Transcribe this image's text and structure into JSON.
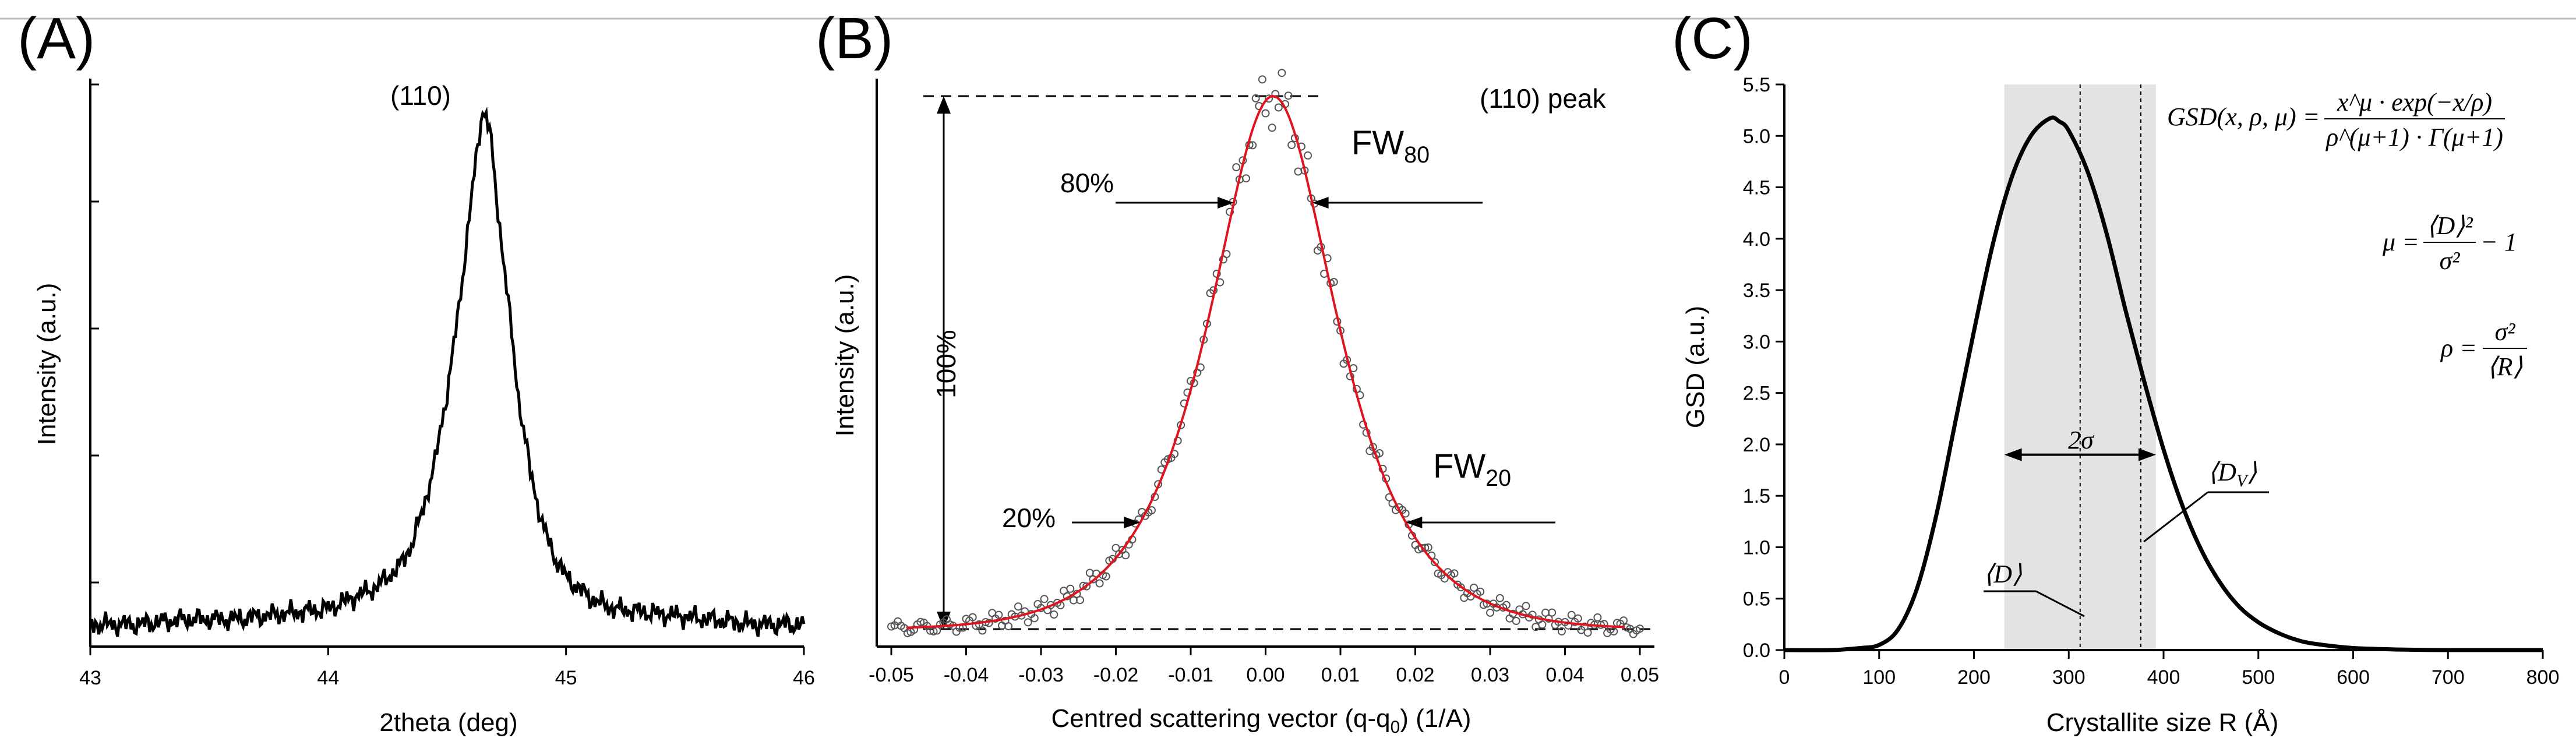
{
  "chart_data": [
    {
      "panel": "(A)",
      "type": "line",
      "xlabel": "2theta (deg)",
      "ylabel": "Intensity (a.u.)",
      "xlim": [
        43,
        46
      ],
      "xticks": [
        "43",
        "44",
        "45",
        "46"
      ],
      "annotations": {
        "peak_label": "(110)"
      },
      "series": [
        {
          "name": "measured",
          "x": [
            43.0,
            43.2,
            43.4,
            43.6,
            43.8,
            44.0,
            44.1,
            44.2,
            44.3,
            44.35,
            44.4,
            44.45,
            44.5,
            44.55,
            44.6,
            44.63,
            44.65,
            44.68,
            44.7,
            44.75,
            44.8,
            44.85,
            44.9,
            44.95,
            45.0,
            45.1,
            45.2,
            45.4,
            45.6,
            45.8,
            46.0
          ],
          "y": [
            0.02,
            0.02,
            0.03,
            0.03,
            0.04,
            0.05,
            0.07,
            0.09,
            0.13,
            0.17,
            0.24,
            0.33,
            0.46,
            0.62,
            0.82,
            0.93,
            1.0,
            0.96,
            0.86,
            0.66,
            0.45,
            0.31,
            0.21,
            0.15,
            0.11,
            0.07,
            0.05,
            0.04,
            0.03,
            0.02,
            0.02
          ]
        }
      ]
    },
    {
      "panel": "(B)",
      "type": "line",
      "xlabel": "Centred scattering vector (q-q",
      "xlabel_sub": "0",
      "xlabel_tail": ") (1/A)",
      "ylabel": "Intensity (a.u.)",
      "xlim": [
        -0.05,
        0.05
      ],
      "xticks": [
        "-0.05",
        "-0.04",
        "-0.03",
        "-0.02",
        "-0.01",
        "0.00",
        "0.01",
        "0.02",
        "0.03",
        "0.04",
        "0.05"
      ],
      "annotations": {
        "peak_label": "(110) peak",
        "fw80_main": "FW",
        "fw80_sub": "80",
        "fw20_main": "FW",
        "fw20_sub": "20",
        "pct80": "80%",
        "pct20": "20%",
        "pct100": "100%"
      },
      "peak_model": {
        "center": 0.001,
        "hwhm": 0.0085,
        "baseline": 0.0,
        "amplitude": 1.0
      },
      "series": [
        {
          "name": "fit",
          "color": "#e0141e"
        },
        {
          "name": "data",
          "marker": "open-circle",
          "color": "#555555"
        }
      ]
    },
    {
      "panel": "(C)",
      "type": "line",
      "xlabel": "Crystallite size R (Å)",
      "ylabel": "GSD (a.u.)",
      "xlim": [
        0,
        800
      ],
      "ylim": [
        0,
        5.5
      ],
      "xticks": [
        "0",
        "100",
        "200",
        "300",
        "400",
        "500",
        "600",
        "700",
        "800"
      ],
      "yticks": [
        "0.0",
        "0.5",
        "1.0",
        "1.5",
        "2.0",
        "2.5",
        "3.0",
        "3.5",
        "4.0",
        "4.5",
        "5.0",
        "5.5"
      ],
      "shaded_band": [
        232,
        392
      ],
      "mean_D": 312,
      "volume_mean_Dv": 376,
      "two_sigma_arrow": [
        232,
        392
      ],
      "annotations": {
        "two_sigma": "2σ",
        "D_label": "⟨D⟩",
        "Dv_label": "⟨D",
        "Dv_sub": "V",
        "Dv_close": "⟩"
      },
      "formulas": {
        "gsd_lhs": "GSD(x, ρ, μ) =",
        "gsd_num": "x^μ · exp(−x/ρ)",
        "gsd_den": "ρ^(μ+1) · Γ(μ+1)",
        "mu_lhs": "μ =",
        "mu_num": "⟨D⟩²",
        "mu_den": "σ²",
        "mu_tail": "− 1",
        "rho_lhs": "ρ =",
        "rho_num": "σ²",
        "rho_den": "⟨R⟩"
      },
      "series": [
        {
          "name": "GSD",
          "x": [
            0,
            50,
            80,
            100,
            120,
            140,
            160,
            180,
            200,
            220,
            240,
            260,
            280,
            290,
            300,
            320,
            340,
            360,
            380,
            400,
            420,
            440,
            460,
            480,
            500,
            520,
            540,
            560,
            600,
            650,
            700,
            750,
            800
          ],
          "y": [
            0.0,
            0.0,
            0.02,
            0.05,
            0.2,
            0.6,
            1.3,
            2.2,
            3.1,
            3.95,
            4.6,
            5.0,
            5.17,
            5.14,
            5.05,
            4.65,
            4.05,
            3.3,
            2.6,
            1.95,
            1.4,
            0.97,
            0.65,
            0.42,
            0.27,
            0.17,
            0.1,
            0.06,
            0.02,
            0.005,
            0.0,
            0.0,
            0.0
          ]
        }
      ]
    }
  ]
}
